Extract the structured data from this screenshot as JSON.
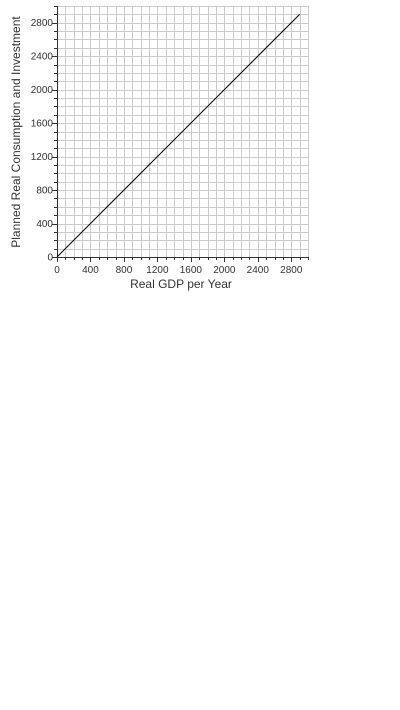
{
  "chart_data": {
    "type": "line",
    "title": "",
    "xlabel": "Real GDP per Year",
    "ylabel": "Planned Real Consumption and Investment",
    "xlim": [
      0,
      3000
    ],
    "ylim": [
      0,
      3000
    ],
    "grid": true,
    "grid_minor_step": 100,
    "x_ticks": [
      0,
      400,
      800,
      1200,
      1600,
      2000,
      2400,
      2800
    ],
    "y_ticks": [
      0,
      400,
      800,
      1200,
      1600,
      2000,
      2400,
      2800
    ],
    "x_tick_labels": [
      "0",
      "400",
      "800",
      "1200",
      "1600",
      "2000",
      "2400",
      "2800"
    ],
    "y_tick_labels": [
      "0",
      "400",
      "800",
      "1200",
      "1600",
      "2000",
      "2400",
      "2800"
    ],
    "series": [
      {
        "x": [
          0,
          2900
        ],
        "y": [
          0,
          2900
        ],
        "color": "#000000"
      }
    ],
    "colors": {
      "grid": "#cccccc",
      "axis": "#333333",
      "line": "#000000"
    }
  }
}
